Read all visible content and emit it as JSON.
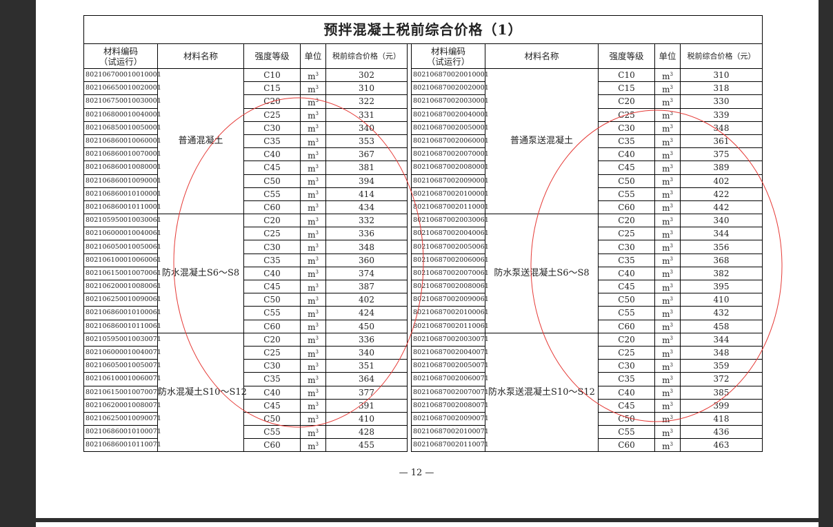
{
  "title": "预拌混凝土税前综合价格（1）",
  "headers": {
    "code": "材料编码",
    "code_sub": "（试运行）",
    "name": "材料名称",
    "grade": "强度等级",
    "unit": "单位",
    "price": "税前综合价格（元）"
  },
  "unit": "m³",
  "page_number": "— 12 —",
  "stamp_color": "#e53935",
  "left": [
    {
      "name": "普通混凝土",
      "rows": [
        [
          "802106700010010001",
          "C10",
          "302"
        ],
        [
          "802106650010020001",
          "C15",
          "310"
        ],
        [
          "802106750010030001",
          "C20",
          "322"
        ],
        [
          "802106800010040001",
          "C25",
          "331"
        ],
        [
          "802106850010050001",
          "C30",
          "340"
        ],
        [
          "802106860010060001",
          "C35",
          "353"
        ],
        [
          "802106860010070001",
          "C40",
          "367"
        ],
        [
          "802106860010080001",
          "C45",
          "381"
        ],
        [
          "802106860010090001",
          "C50",
          "394"
        ],
        [
          "802106860010100001",
          "C55",
          "414"
        ],
        [
          "802106860010110001",
          "C60",
          "434"
        ]
      ]
    },
    {
      "name": "防水混凝土S6～S8",
      "rows": [
        [
          "802105950010030061",
          "C20",
          "332"
        ],
        [
          "802106000010040061",
          "C25",
          "336"
        ],
        [
          "802106050010050061",
          "C30",
          "348"
        ],
        [
          "802106100010060061",
          "C35",
          "360"
        ],
        [
          "802106150010070061",
          "C40",
          "374"
        ],
        [
          "802106200010080061",
          "C45",
          "387"
        ],
        [
          "802106250010090061",
          "C50",
          "402"
        ],
        [
          "802106860010100061",
          "C55",
          "424"
        ],
        [
          "802106860010110061",
          "C60",
          "450"
        ]
      ]
    },
    {
      "name": "防水混凝土S10～S12",
      "rows": [
        [
          "802105950010030071",
          "C20",
          "336"
        ],
        [
          "802106000010040071",
          "C25",
          "340"
        ],
        [
          "802106050010050071",
          "C30",
          "351"
        ],
        [
          "802106100010060071",
          "C35",
          "364"
        ],
        [
          "802106150010070071",
          "C40",
          "377"
        ],
        [
          "802106200010080071",
          "C45",
          "391"
        ],
        [
          "802106250010090071",
          "C50",
          "410"
        ],
        [
          "802106860010100071",
          "C55",
          "428"
        ],
        [
          "802106860010110071",
          "C60",
          "455"
        ]
      ]
    }
  ],
  "right": [
    {
      "name": "普通泵送混凝土",
      "rows": [
        [
          "802106870020010001",
          "C10",
          "310"
        ],
        [
          "802106870020020001",
          "C15",
          "318"
        ],
        [
          "802106870020030001",
          "C20",
          "330"
        ],
        [
          "802106870020040001",
          "C25",
          "339"
        ],
        [
          "802106870020050001",
          "C30",
          "348"
        ],
        [
          "802106870020060001",
          "C35",
          "361"
        ],
        [
          "802106870020070001",
          "C40",
          "375"
        ],
        [
          "802106870020080001",
          "C45",
          "389"
        ],
        [
          "802106870020090001",
          "C50",
          "402"
        ],
        [
          "802106870020100001",
          "C55",
          "422"
        ],
        [
          "802106870020110001",
          "C60",
          "442"
        ]
      ]
    },
    {
      "name": "防水泵送混凝土S6～S8",
      "rows": [
        [
          "802106870020030061",
          "C20",
          "340"
        ],
        [
          "802106870020040061",
          "C25",
          "344"
        ],
        [
          "802106870020050061",
          "C30",
          "356"
        ],
        [
          "802106870020060061",
          "C35",
          "368"
        ],
        [
          "802106870020070061",
          "C40",
          "382"
        ],
        [
          "802106870020080061",
          "C45",
          "395"
        ],
        [
          "802106870020090061",
          "C50",
          "410"
        ],
        [
          "802106870020100061",
          "C55",
          "432"
        ],
        [
          "802106870020110061",
          "C60",
          "458"
        ]
      ]
    },
    {
      "name": "防水泵送混凝土S10～S12",
      "rows": [
        [
          "802106870020030071",
          "C20",
          "344"
        ],
        [
          "802106870020040071",
          "C25",
          "348"
        ],
        [
          "802106870020050071",
          "C30",
          "359"
        ],
        [
          "802106870020060071",
          "C35",
          "372"
        ],
        [
          "802106870020070071",
          "C40",
          "385"
        ],
        [
          "802106870020080071",
          "C45",
          "399"
        ],
        [
          "802106870020090071",
          "C50",
          "418"
        ],
        [
          "802106870020100071",
          "C55",
          "436"
        ],
        [
          "802106870020110071",
          "C60",
          "463"
        ]
      ]
    }
  ]
}
